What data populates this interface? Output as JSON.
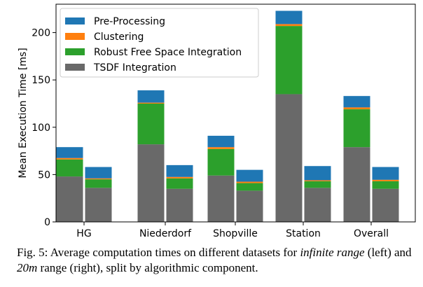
{
  "chart_data": {
    "type": "bar",
    "stacked": true,
    "categories": [
      "HG",
      "Niederdorf",
      "Shopville",
      "Station",
      "Overall"
    ],
    "ylabel": "Mean Execution Time [ms]",
    "ylim": [
      0,
      230
    ],
    "yticks": [
      0,
      50,
      100,
      150,
      200
    ],
    "legend_position": "top-left",
    "components": [
      {
        "name": "TSDF Integration",
        "color": "#696969"
      },
      {
        "name": "Robust Free Space Integration",
        "color": "#2ca02c"
      },
      {
        "name": "Clustering",
        "color": "#ff7f0e"
      },
      {
        "name": "Pre-Processing",
        "color": "#1f77b4"
      }
    ],
    "legend_order": [
      "Pre-Processing",
      "Clustering",
      "Robust Free Space Integration",
      "TSDF Integration"
    ],
    "bars": [
      {
        "category": "HG",
        "range": "infinite",
        "values": [
          48,
          18,
          1.5,
          11.5
        ]
      },
      {
        "category": "HG",
        "range": "20m",
        "values": [
          36,
          9,
          1,
          12
        ]
      },
      {
        "category": "Niederdorf",
        "range": "infinite",
        "values": [
          82,
          43,
          1,
          13
        ]
      },
      {
        "category": "Niederdorf",
        "range": "20m",
        "values": [
          35,
          11,
          1.5,
          12.5
        ]
      },
      {
        "category": "Shopville",
        "range": "infinite",
        "values": [
          49,
          28,
          2,
          12
        ]
      },
      {
        "category": "Shopville",
        "range": "20m",
        "values": [
          33,
          8,
          1.5,
          12.5
        ]
      },
      {
        "category": "Station",
        "range": "infinite",
        "values": [
          135,
          72,
          2,
          14
        ]
      },
      {
        "category": "Station",
        "range": "20m",
        "values": [
          36,
          7,
          1,
          15
        ]
      },
      {
        "category": "Overall",
        "range": "infinite",
        "values": [
          79,
          40,
          2,
          12
        ]
      },
      {
        "category": "Overall",
        "range": "20m",
        "values": [
          35,
          8,
          1.5,
          13.5
        ]
      }
    ]
  },
  "caption": {
    "prefix": "Fig. 5: Average computation times on different datasets for ",
    "em1": "infinite range",
    "mid1": " (left) and ",
    "em2": "20m",
    "suffix": " range (right), split by algorithmic component."
  }
}
